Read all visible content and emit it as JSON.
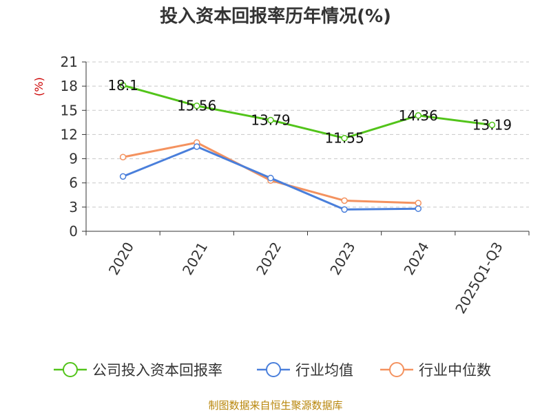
{
  "chart_data": {
    "type": "line",
    "title": "投入资本回报率历年情况(%)",
    "ylabel": "(%)",
    "xlabel": "",
    "categories": [
      "2020",
      "2021",
      "2022",
      "2023",
      "2024",
      "2025Q1-Q3"
    ],
    "ylim": [
      0,
      21
    ],
    "yticks": [
      0,
      3,
      6,
      9,
      12,
      15,
      18,
      21
    ],
    "grid": true,
    "legend_position": "bottom",
    "series": [
      {
        "name": "公司投入资本回报率",
        "color": "#52c41a",
        "values": [
          18.1,
          15.56,
          13.79,
          11.55,
          14.36,
          13.19
        ],
        "labels": [
          "18.1",
          "15.56",
          "13.79",
          "11.55",
          "14.36",
          "13.19"
        ]
      },
      {
        "name": "行业均值",
        "color": "#4a7fdb",
        "values": [
          6.8,
          10.5,
          6.6,
          2.7,
          2.8,
          null
        ]
      },
      {
        "name": "行业中位数",
        "color": "#f4925f",
        "values": [
          9.2,
          11.0,
          6.3,
          3.8,
          3.5,
          null
        ]
      }
    ],
    "source": "制图数据来自恒生聚源数据库"
  }
}
